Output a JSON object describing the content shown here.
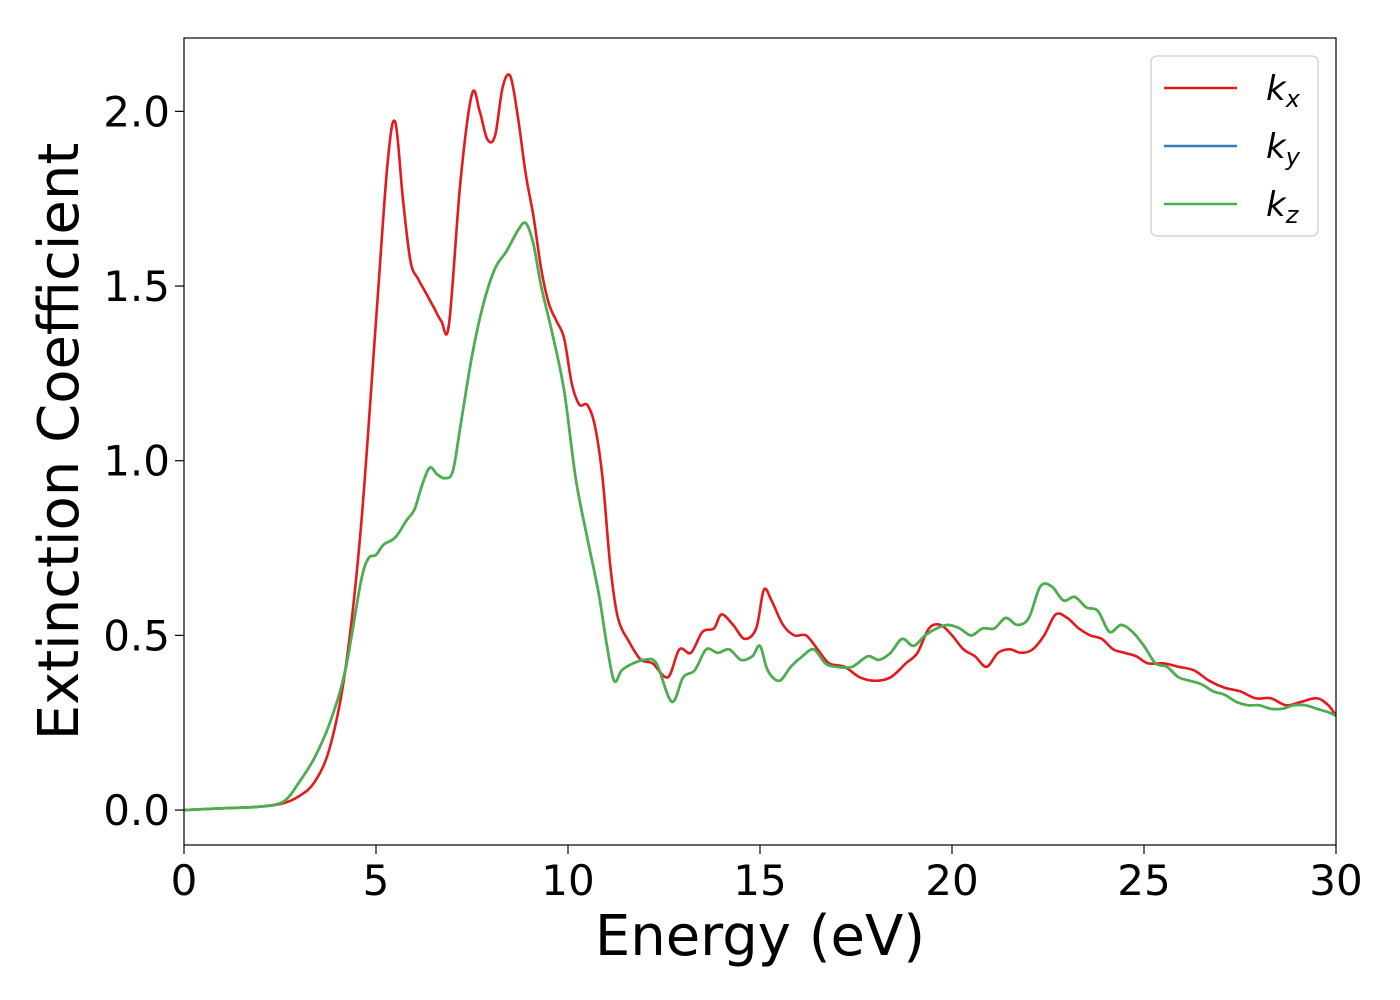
{
  "chart_data": {
    "type": "line",
    "title": "",
    "xlabel": "Energy (eV)",
    "ylabel": "Extinction Coefficient",
    "xlim": [
      0,
      30
    ],
    "ylim": [
      -0.1,
      2.21
    ],
    "xticks": [
      0,
      5,
      10,
      15,
      20,
      25,
      30
    ],
    "xtick_labels": [
      "0",
      "5",
      "10",
      "15",
      "20",
      "25",
      "30"
    ],
    "yticks": [
      0.0,
      0.5,
      1.0,
      1.5,
      2.0
    ],
    "ytick_labels": [
      "0.0",
      "0.5",
      "1.0",
      "1.5",
      "2.0"
    ],
    "grid": false,
    "legend": {
      "position": "top-right",
      "entries": [
        {
          "base": "k",
          "sub": "x",
          "color": "#e41a1c"
        },
        {
          "base": "k",
          "sub": "y",
          "color": "#377eb8"
        },
        {
          "base": "k",
          "sub": "z",
          "color": "#4daf4a"
        }
      ]
    },
    "series": [
      {
        "name": "kx",
        "color": "#e41a1c",
        "points": [
          [
            0,
            0
          ],
          [
            1,
            0.005
          ],
          [
            2,
            0.01
          ],
          [
            2.6,
            0.02
          ],
          [
            3,
            0.04
          ],
          [
            3.4,
            0.08
          ],
          [
            3.8,
            0.18
          ],
          [
            4.2,
            0.4
          ],
          [
            4.6,
            0.8
          ],
          [
            5.0,
            1.4
          ],
          [
            5.3,
            1.85
          ],
          [
            5.5,
            1.97
          ],
          [
            5.7,
            1.75
          ],
          [
            5.9,
            1.57
          ],
          [
            6.1,
            1.52
          ],
          [
            6.3,
            1.48
          ],
          [
            6.5,
            1.44
          ],
          [
            6.7,
            1.4
          ],
          [
            6.9,
            1.39
          ],
          [
            7.2,
            1.8
          ],
          [
            7.5,
            2.05
          ],
          [
            7.7,
            2.0
          ],
          [
            7.9,
            1.92
          ],
          [
            8.1,
            1.93
          ],
          [
            8.3,
            2.07
          ],
          [
            8.5,
            2.1
          ],
          [
            8.7,
            1.98
          ],
          [
            8.9,
            1.82
          ],
          [
            9.1,
            1.7
          ],
          [
            9.3,
            1.55
          ],
          [
            9.5,
            1.45
          ],
          [
            9.7,
            1.4
          ],
          [
            9.9,
            1.35
          ],
          [
            10.1,
            1.22
          ],
          [
            10.3,
            1.16
          ],
          [
            10.5,
            1.16
          ],
          [
            10.7,
            1.1
          ],
          [
            10.9,
            0.95
          ],
          [
            11.1,
            0.7
          ],
          [
            11.3,
            0.55
          ],
          [
            11.6,
            0.48
          ],
          [
            11.9,
            0.43
          ],
          [
            12.2,
            0.42
          ],
          [
            12.6,
            0.38
          ],
          [
            12.9,
            0.46
          ],
          [
            13.2,
            0.45
          ],
          [
            13.5,
            0.51
          ],
          [
            13.8,
            0.52
          ],
          [
            14.0,
            0.56
          ],
          [
            14.3,
            0.53
          ],
          [
            14.6,
            0.49
          ],
          [
            14.9,
            0.52
          ],
          [
            15.1,
            0.63
          ],
          [
            15.3,
            0.6
          ],
          [
            15.6,
            0.53
          ],
          [
            15.9,
            0.5
          ],
          [
            16.2,
            0.5
          ],
          [
            16.5,
            0.46
          ],
          [
            16.8,
            0.42
          ],
          [
            17.2,
            0.41
          ],
          [
            17.6,
            0.38
          ],
          [
            18.0,
            0.37
          ],
          [
            18.4,
            0.38
          ],
          [
            18.8,
            0.42
          ],
          [
            19.1,
            0.45
          ],
          [
            19.4,
            0.52
          ],
          [
            19.7,
            0.53
          ],
          [
            20.0,
            0.5
          ],
          [
            20.3,
            0.46
          ],
          [
            20.6,
            0.44
          ],
          [
            20.9,
            0.41
          ],
          [
            21.2,
            0.45
          ],
          [
            21.5,
            0.46
          ],
          [
            21.8,
            0.45
          ],
          [
            22.1,
            0.46
          ],
          [
            22.4,
            0.5
          ],
          [
            22.7,
            0.56
          ],
          [
            23.0,
            0.55
          ],
          [
            23.3,
            0.52
          ],
          [
            23.6,
            0.5
          ],
          [
            23.9,
            0.49
          ],
          [
            24.2,
            0.46
          ],
          [
            24.5,
            0.45
          ],
          [
            24.8,
            0.44
          ],
          [
            25.1,
            0.42
          ],
          [
            25.5,
            0.42
          ],
          [
            25.9,
            0.41
          ],
          [
            26.3,
            0.4
          ],
          [
            26.7,
            0.37
          ],
          [
            27.1,
            0.35
          ],
          [
            27.5,
            0.34
          ],
          [
            27.9,
            0.32
          ],
          [
            28.3,
            0.32
          ],
          [
            28.7,
            0.3
          ],
          [
            29.1,
            0.31
          ],
          [
            29.5,
            0.32
          ],
          [
            29.8,
            0.3
          ],
          [
            30,
            0.27
          ]
        ]
      },
      {
        "name": "ky",
        "color": "#377eb8",
        "points": [
          [
            0,
            0
          ],
          [
            1,
            0.005
          ],
          [
            2,
            0.01
          ],
          [
            2.6,
            0.025
          ],
          [
            3,
            0.08
          ],
          [
            3.4,
            0.15
          ],
          [
            3.8,
            0.25
          ],
          [
            4.2,
            0.4
          ],
          [
            4.6,
            0.65
          ],
          [
            4.8,
            0.72
          ],
          [
            5.0,
            0.73
          ],
          [
            5.2,
            0.76
          ],
          [
            5.5,
            0.78
          ],
          [
            5.8,
            0.83
          ],
          [
            6.0,
            0.86
          ],
          [
            6.2,
            0.93
          ],
          [
            6.4,
            0.98
          ],
          [
            6.6,
            0.96
          ],
          [
            6.8,
            0.95
          ],
          [
            7.0,
            0.97
          ],
          [
            7.2,
            1.1
          ],
          [
            7.5,
            1.3
          ],
          [
            7.8,
            1.45
          ],
          [
            8.1,
            1.55
          ],
          [
            8.4,
            1.6
          ],
          [
            8.7,
            1.66
          ],
          [
            8.9,
            1.68
          ],
          [
            9.1,
            1.62
          ],
          [
            9.3,
            1.5
          ],
          [
            9.6,
            1.36
          ],
          [
            9.9,
            1.2
          ],
          [
            10.2,
            0.95
          ],
          [
            10.5,
            0.78
          ],
          [
            10.8,
            0.62
          ],
          [
            11.0,
            0.48
          ],
          [
            11.2,
            0.37
          ],
          [
            11.4,
            0.4
          ],
          [
            11.7,
            0.42
          ],
          [
            12.0,
            0.43
          ],
          [
            12.3,
            0.42
          ],
          [
            12.7,
            0.31
          ],
          [
            13.0,
            0.38
          ],
          [
            13.3,
            0.4
          ],
          [
            13.6,
            0.46
          ],
          [
            13.9,
            0.45
          ],
          [
            14.2,
            0.46
          ],
          [
            14.5,
            0.43
          ],
          [
            14.8,
            0.44
          ],
          [
            15.0,
            0.47
          ],
          [
            15.2,
            0.4
          ],
          [
            15.5,
            0.37
          ],
          [
            15.8,
            0.41
          ],
          [
            16.1,
            0.44
          ],
          [
            16.4,
            0.46
          ],
          [
            16.7,
            0.42
          ],
          [
            17.0,
            0.41
          ],
          [
            17.4,
            0.41
          ],
          [
            17.8,
            0.44
          ],
          [
            18.1,
            0.43
          ],
          [
            18.4,
            0.45
          ],
          [
            18.7,
            0.49
          ],
          [
            19.0,
            0.47
          ],
          [
            19.3,
            0.5
          ],
          [
            19.6,
            0.52
          ],
          [
            19.9,
            0.53
          ],
          [
            20.2,
            0.52
          ],
          [
            20.5,
            0.5
          ],
          [
            20.8,
            0.52
          ],
          [
            21.1,
            0.52
          ],
          [
            21.4,
            0.55
          ],
          [
            21.7,
            0.53
          ],
          [
            22.0,
            0.55
          ],
          [
            22.3,
            0.64
          ],
          [
            22.6,
            0.64
          ],
          [
            22.9,
            0.6
          ],
          [
            23.2,
            0.61
          ],
          [
            23.5,
            0.58
          ],
          [
            23.8,
            0.57
          ],
          [
            24.1,
            0.51
          ],
          [
            24.4,
            0.53
          ],
          [
            24.7,
            0.51
          ],
          [
            25.0,
            0.47
          ],
          [
            25.3,
            0.42
          ],
          [
            25.6,
            0.41
          ],
          [
            25.9,
            0.38
          ],
          [
            26.2,
            0.37
          ],
          [
            26.5,
            0.36
          ],
          [
            26.8,
            0.34
          ],
          [
            27.1,
            0.33
          ],
          [
            27.4,
            0.31
          ],
          [
            27.7,
            0.3
          ],
          [
            28.0,
            0.3
          ],
          [
            28.3,
            0.29
          ],
          [
            28.6,
            0.29
          ],
          [
            28.9,
            0.3
          ],
          [
            29.2,
            0.3
          ],
          [
            29.5,
            0.29
          ],
          [
            29.8,
            0.28
          ],
          [
            30,
            0.27
          ]
        ]
      },
      {
        "name": "kz",
        "color": "#4daf4a",
        "points": [
          [
            0,
            0
          ],
          [
            1,
            0.005
          ],
          [
            2,
            0.01
          ],
          [
            2.6,
            0.025
          ],
          [
            3,
            0.08
          ],
          [
            3.4,
            0.15
          ],
          [
            3.8,
            0.25
          ],
          [
            4.2,
            0.4
          ],
          [
            4.6,
            0.65
          ],
          [
            4.8,
            0.72
          ],
          [
            5.0,
            0.73
          ],
          [
            5.2,
            0.76
          ],
          [
            5.5,
            0.78
          ],
          [
            5.8,
            0.83
          ],
          [
            6.0,
            0.86
          ],
          [
            6.2,
            0.93
          ],
          [
            6.4,
            0.98
          ],
          [
            6.6,
            0.96
          ],
          [
            6.8,
            0.95
          ],
          [
            7.0,
            0.97
          ],
          [
            7.2,
            1.1
          ],
          [
            7.5,
            1.3
          ],
          [
            7.8,
            1.45
          ],
          [
            8.1,
            1.55
          ],
          [
            8.4,
            1.6
          ],
          [
            8.7,
            1.66
          ],
          [
            8.9,
            1.68
          ],
          [
            9.1,
            1.62
          ],
          [
            9.3,
            1.5
          ],
          [
            9.6,
            1.36
          ],
          [
            9.9,
            1.2
          ],
          [
            10.2,
            0.95
          ],
          [
            10.5,
            0.78
          ],
          [
            10.8,
            0.62
          ],
          [
            11.0,
            0.48
          ],
          [
            11.2,
            0.37
          ],
          [
            11.4,
            0.4
          ],
          [
            11.7,
            0.42
          ],
          [
            12.0,
            0.43
          ],
          [
            12.3,
            0.42
          ],
          [
            12.7,
            0.31
          ],
          [
            13.0,
            0.38
          ],
          [
            13.3,
            0.4
          ],
          [
            13.6,
            0.46
          ],
          [
            13.9,
            0.45
          ],
          [
            14.2,
            0.46
          ],
          [
            14.5,
            0.43
          ],
          [
            14.8,
            0.44
          ],
          [
            15.0,
            0.47
          ],
          [
            15.2,
            0.4
          ],
          [
            15.5,
            0.37
          ],
          [
            15.8,
            0.41
          ],
          [
            16.1,
            0.44
          ],
          [
            16.4,
            0.46
          ],
          [
            16.7,
            0.42
          ],
          [
            17.0,
            0.41
          ],
          [
            17.4,
            0.41
          ],
          [
            17.8,
            0.44
          ],
          [
            18.1,
            0.43
          ],
          [
            18.4,
            0.45
          ],
          [
            18.7,
            0.49
          ],
          [
            19.0,
            0.47
          ],
          [
            19.3,
            0.5
          ],
          [
            19.6,
            0.52
          ],
          [
            19.9,
            0.53
          ],
          [
            20.2,
            0.52
          ],
          [
            20.5,
            0.5
          ],
          [
            20.8,
            0.52
          ],
          [
            21.1,
            0.52
          ],
          [
            21.4,
            0.55
          ],
          [
            21.7,
            0.53
          ],
          [
            22.0,
            0.55
          ],
          [
            22.3,
            0.64
          ],
          [
            22.6,
            0.64
          ],
          [
            22.9,
            0.6
          ],
          [
            23.2,
            0.61
          ],
          [
            23.5,
            0.58
          ],
          [
            23.8,
            0.57
          ],
          [
            24.1,
            0.51
          ],
          [
            24.4,
            0.53
          ],
          [
            24.7,
            0.51
          ],
          [
            25.0,
            0.47
          ],
          [
            25.3,
            0.42
          ],
          [
            25.6,
            0.41
          ],
          [
            25.9,
            0.38
          ],
          [
            26.2,
            0.37
          ],
          [
            26.5,
            0.36
          ],
          [
            26.8,
            0.34
          ],
          [
            27.1,
            0.33
          ],
          [
            27.4,
            0.31
          ],
          [
            27.7,
            0.3
          ],
          [
            28.0,
            0.3
          ],
          [
            28.3,
            0.29
          ],
          [
            28.6,
            0.29
          ],
          [
            28.9,
            0.3
          ],
          [
            29.2,
            0.3
          ],
          [
            29.5,
            0.29
          ],
          [
            29.8,
            0.28
          ],
          [
            30,
            0.27
          ]
        ]
      }
    ]
  }
}
